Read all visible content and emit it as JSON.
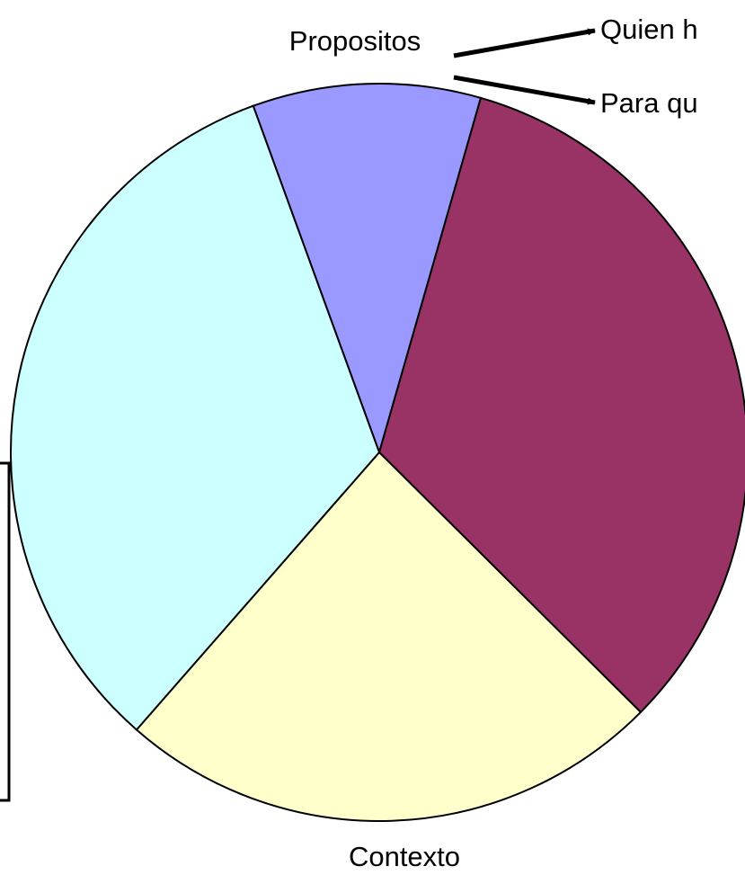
{
  "chart_data": {
    "type": "pie",
    "categories": [
      "Propositos",
      null,
      "Contexto",
      null
    ],
    "values": [
      10,
      33,
      24,
      33
    ],
    "colors": [
      "#9999ff",
      "#993366",
      "#ffffcc",
      "#ccffff"
    ],
    "annotations": [
      "Quien h",
      "Para qu"
    ]
  }
}
